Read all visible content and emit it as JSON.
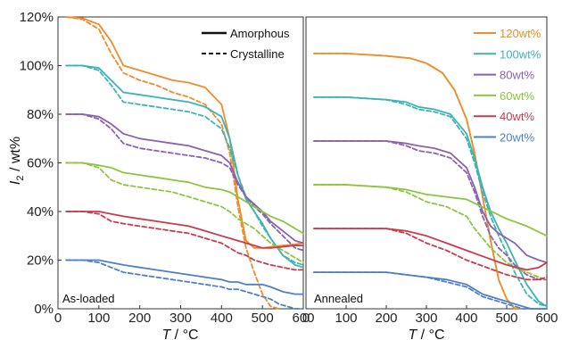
{
  "chart_data": [
    {
      "type": "line",
      "panel_label": "As-loaded",
      "xlabel": "T / °C",
      "ylabel": "I2 / wt%",
      "xlim": [
        0,
        600
      ],
      "ylim": [
        0,
        120
      ],
      "x_ticks": [
        "0",
        "100",
        "200",
        "300",
        "400",
        "500",
        "600"
      ],
      "y_ticks": [
        "0%",
        "20%",
        "40%",
        "60%",
        "80%",
        "100%",
        "120%"
      ],
      "grid": false,
      "style_legend": {
        "position": "top-right",
        "entries": [
          {
            "label": "Amorphous",
            "dash": "solid"
          },
          {
            "label": "Crystalline",
            "dash": "dashed"
          }
        ]
      },
      "series": [
        {
          "name": "120wt%",
          "color": "#F08C2A",
          "style": "solid",
          "x": [
            20,
            60,
            100,
            130,
            160,
            200,
            240,
            280,
            320,
            360,
            400,
            420,
            440,
            460,
            480,
            500,
            520,
            550,
            580,
            600
          ],
          "y": [
            120,
            119.5,
            117,
            110,
            100,
            98,
            96,
            94,
            93,
            91,
            84,
            70,
            45,
            28,
            25,
            25,
            25.5,
            26,
            26.5,
            27
          ]
        },
        {
          "name": "120wt%",
          "color": "#F08C2A",
          "style": "dashed",
          "x": [
            20,
            60,
            100,
            130,
            160,
            200,
            240,
            280,
            320,
            360,
            400,
            420,
            440,
            460,
            480,
            500,
            520,
            540
          ],
          "y": [
            120,
            119,
            115,
            105,
            97,
            94,
            92,
            89,
            87,
            84,
            76,
            64,
            42,
            25,
            15,
            6,
            1,
            0
          ]
        },
        {
          "name": "100wt%",
          "color": "#3DB4B4",
          "style": "solid",
          "x": [
            20,
            60,
            100,
            130,
            160,
            200,
            240,
            280,
            320,
            360,
            400,
            420,
            440,
            460,
            480,
            500,
            520,
            550,
            580,
            600
          ],
          "y": [
            100,
            100,
            99,
            94,
            89,
            88,
            87,
            86,
            85,
            83,
            79,
            70,
            55,
            45,
            40,
            35,
            29,
            22,
            18,
            17
          ]
        },
        {
          "name": "100wt%",
          "color": "#3DB4B4",
          "style": "dashed",
          "x": [
            20,
            60,
            100,
            130,
            160,
            200,
            240,
            280,
            320,
            360,
            400,
            420,
            440,
            460,
            480,
            500,
            520,
            550,
            580,
            600
          ],
          "y": [
            100,
            100,
            98,
            92,
            85,
            84,
            83,
            82,
            81,
            79,
            74,
            66,
            55,
            46,
            40,
            34,
            29,
            22,
            19,
            18
          ]
        },
        {
          "name": "80wt%",
          "color": "#8A62B0",
          "style": "solid",
          "x": [
            20,
            60,
            100,
            130,
            160,
            200,
            240,
            280,
            320,
            360,
            400,
            420,
            440,
            460,
            480,
            500,
            520,
            550,
            580,
            600
          ],
          "y": [
            80,
            80,
            79,
            76,
            72,
            70,
            69,
            68,
            67,
            65,
            63,
            60,
            52,
            46,
            43,
            40,
            36,
            32,
            28,
            27
          ]
        },
        {
          "name": "80wt%",
          "color": "#8A62B0",
          "style": "dashed",
          "x": [
            20,
            60,
            100,
            130,
            160,
            200,
            240,
            280,
            320,
            360,
            400,
            420,
            440,
            460,
            480,
            500,
            520,
            550,
            580,
            600
          ],
          "y": [
            80,
            80,
            78,
            74,
            68,
            66,
            65,
            64,
            63,
            62,
            60,
            58,
            51,
            46,
            42,
            39,
            35,
            30,
            25,
            24
          ]
        },
        {
          "name": "60wt%",
          "color": "#8CC63F",
          "style": "solid",
          "x": [
            20,
            60,
            100,
            130,
            160,
            200,
            240,
            280,
            320,
            360,
            400,
            420,
            440,
            460,
            480,
            500,
            520,
            550,
            580,
            600
          ],
          "y": [
            60,
            60,
            59,
            58,
            56,
            55,
            54,
            53,
            52,
            50,
            49,
            48,
            46,
            44,
            42,
            40,
            38,
            36,
            33,
            31
          ]
        },
        {
          "name": "60wt%",
          "color": "#8CC63F",
          "style": "dashed",
          "x": [
            20,
            60,
            100,
            130,
            160,
            200,
            240,
            280,
            320,
            360,
            400,
            420,
            440,
            460,
            480,
            500,
            520,
            550,
            580,
            600
          ],
          "y": [
            60,
            60,
            58,
            53,
            51,
            50,
            49,
            48,
            46,
            44,
            42,
            40,
            37,
            35,
            33,
            30,
            27,
            24,
            21,
            19
          ]
        },
        {
          "name": "40wt%",
          "color": "#C83C4B",
          "style": "solid",
          "x": [
            20,
            60,
            100,
            130,
            160,
            200,
            240,
            280,
            320,
            360,
            400,
            420,
            440,
            460,
            480,
            500,
            520,
            550,
            580,
            600
          ],
          "y": [
            40,
            40,
            40,
            39,
            38,
            37,
            36,
            35,
            34,
            32,
            30,
            29,
            28,
            27,
            26,
            25,
            25,
            25.5,
            26,
            26
          ]
        },
        {
          "name": "40wt%",
          "color": "#C83C4B",
          "style": "dashed",
          "x": [
            20,
            60,
            100,
            130,
            160,
            200,
            240,
            280,
            320,
            360,
            400,
            420,
            440,
            460,
            480,
            500,
            520,
            550,
            580,
            600
          ],
          "y": [
            40,
            40,
            39,
            36,
            35,
            34,
            33,
            32,
            31,
            29,
            27,
            25,
            23,
            22,
            20,
            19,
            18,
            17,
            16,
            16
          ]
        },
        {
          "name": "20wt%",
          "color": "#4F7FC7",
          "style": "solid",
          "x": [
            20,
            60,
            100,
            130,
            160,
            200,
            240,
            280,
            320,
            360,
            400,
            420,
            440,
            460,
            480,
            500,
            520,
            550,
            580,
            600
          ],
          "y": [
            20,
            20,
            20,
            19,
            18,
            17,
            16,
            15,
            14,
            13,
            12,
            11,
            11,
            10,
            10,
            10,
            9,
            7,
            6,
            6
          ]
        },
        {
          "name": "20wt%",
          "color": "#4F7FC7",
          "style": "dashed",
          "x": [
            20,
            60,
            100,
            130,
            160,
            200,
            240,
            280,
            320,
            360,
            400,
            420,
            440,
            460,
            480,
            500,
            520,
            540,
            560,
            580,
            600
          ],
          "y": [
            20,
            20,
            19,
            17,
            15,
            14,
            13,
            12,
            11,
            10,
            9,
            8,
            8,
            7,
            6,
            5,
            4,
            2,
            1,
            0,
            0
          ]
        }
      ]
    },
    {
      "type": "line",
      "panel_label": "Annealed",
      "xlabel": "T / °C",
      "xlim": [
        0,
        600
      ],
      "ylim": [
        0,
        120
      ],
      "x_ticks": [
        "0",
        "100",
        "200",
        "300",
        "400",
        "500",
        "600"
      ],
      "grid": false,
      "legend": {
        "position": "top-right",
        "entries": [
          "120wt%",
          "100wt%",
          "80wt%",
          "60wt%",
          "40wt%",
          "20wt%"
        ]
      },
      "series": [
        {
          "name": "120wt%",
          "color": "#F08C2A",
          "style": "solid",
          "x": [
            20,
            100,
            200,
            260,
            300,
            340,
            370,
            400,
            420,
            440,
            460,
            480,
            500,
            520,
            530
          ],
          "y": [
            105,
            105,
            104,
            103,
            101,
            97,
            90,
            78,
            64,
            46,
            28,
            12,
            4,
            0,
            0
          ]
        },
        {
          "name": "120wt%",
          "color": "#F08C2A",
          "style": "dashed",
          "x": [
            20,
            100,
            200,
            260,
            300,
            340,
            370,
            400,
            420,
            440,
            460,
            480,
            500,
            520,
            530
          ],
          "y": [
            105,
            105,
            104,
            103,
            101,
            97,
            90,
            78,
            64,
            46,
            28,
            12,
            4,
            0,
            0
          ]
        },
        {
          "name": "100wt%",
          "color": "#3DB4B4",
          "style": "solid",
          "x": [
            20,
            100,
            200,
            250,
            280,
            320,
            360,
            400,
            420,
            440,
            460,
            480,
            500,
            520,
            550,
            580,
            600
          ],
          "y": [
            87,
            87,
            86,
            85,
            83,
            82,
            80,
            72,
            62,
            50,
            40,
            33,
            27,
            20,
            10,
            3,
            1
          ]
        },
        {
          "name": "100wt%",
          "color": "#3DB4B4",
          "style": "dashed",
          "x": [
            20,
            100,
            200,
            250,
            280,
            320,
            360,
            400,
            420,
            440,
            460,
            480,
            500,
            520,
            550,
            580,
            600
          ],
          "y": [
            87,
            87,
            86,
            84,
            82,
            81,
            79,
            70,
            60,
            48,
            38,
            30,
            23,
            15,
            6,
            2,
            1
          ]
        },
        {
          "name": "80wt%",
          "color": "#8A62B0",
          "style": "solid",
          "x": [
            20,
            100,
            200,
            250,
            280,
            320,
            360,
            400,
            420,
            440,
            460,
            480,
            500,
            520,
            550,
            580,
            600
          ],
          "y": [
            69,
            69,
            69,
            68,
            67,
            66,
            64,
            58,
            50,
            40,
            34,
            31,
            29,
            27,
            22,
            20,
            19
          ]
        },
        {
          "name": "80wt%",
          "color": "#8A62B0",
          "style": "dashed",
          "x": [
            20,
            100,
            200,
            250,
            280,
            320,
            360,
            400,
            420,
            440,
            460,
            480,
            500,
            520,
            550,
            580,
            600
          ],
          "y": [
            69,
            69,
            69,
            67,
            65,
            64,
            62,
            56,
            48,
            38,
            30,
            25,
            22,
            18,
            14,
            12,
            12
          ]
        },
        {
          "name": "60wt%",
          "color": "#8CC63F",
          "style": "solid",
          "x": [
            20,
            100,
            200,
            250,
            300,
            350,
            400,
            450,
            500,
            550,
            600
          ],
          "y": [
            51,
            51,
            50,
            49,
            47,
            46,
            45,
            41,
            37,
            34,
            30
          ]
        },
        {
          "name": "60wt%",
          "color": "#8CC63F",
          "style": "dashed",
          "x": [
            20,
            100,
            200,
            250,
            300,
            350,
            400,
            420,
            440,
            460,
            480,
            500,
            520,
            550,
            580,
            600
          ],
          "y": [
            51,
            51,
            50,
            48,
            44,
            42,
            38,
            33,
            29,
            25,
            22,
            19,
            17,
            15,
            13,
            12
          ]
        },
        {
          "name": "40wt%",
          "color": "#C83C4B",
          "style": "solid",
          "x": [
            20,
            100,
            200,
            250,
            300,
            350,
            400,
            450,
            500,
            550,
            580,
            600
          ],
          "y": [
            33,
            33,
            33,
            32,
            30,
            27,
            24,
            21,
            18,
            16,
            17,
            19
          ]
        },
        {
          "name": "40wt%",
          "color": "#C83C4B",
          "style": "dashed",
          "x": [
            20,
            100,
            200,
            250,
            300,
            350,
            400,
            450,
            500,
            550,
            580,
            600
          ],
          "y": [
            33,
            33,
            33,
            31,
            27,
            24,
            20,
            17,
            14,
            12,
            12,
            13
          ]
        },
        {
          "name": "20wt%",
          "color": "#4F7FC7",
          "style": "solid",
          "x": [
            20,
            100,
            200,
            250,
            300,
            350,
            400,
            420,
            440,
            460,
            480,
            500,
            520,
            540,
            560,
            580,
            600
          ],
          "y": [
            15,
            15,
            15,
            14,
            13,
            12,
            10,
            8,
            6,
            5,
            4,
            3,
            2,
            1,
            0,
            0,
            0
          ]
        },
        {
          "name": "20wt%",
          "color": "#4F7FC7",
          "style": "dashed",
          "x": [
            20,
            100,
            200,
            250,
            300,
            350,
            400,
            420,
            440,
            460,
            480,
            500,
            520,
            540,
            560,
            580,
            600
          ],
          "y": [
            15,
            15,
            15,
            14,
            13,
            11,
            9,
            7,
            5,
            4,
            3,
            2,
            1,
            0,
            0,
            0,
            0
          ]
        }
      ]
    }
  ]
}
